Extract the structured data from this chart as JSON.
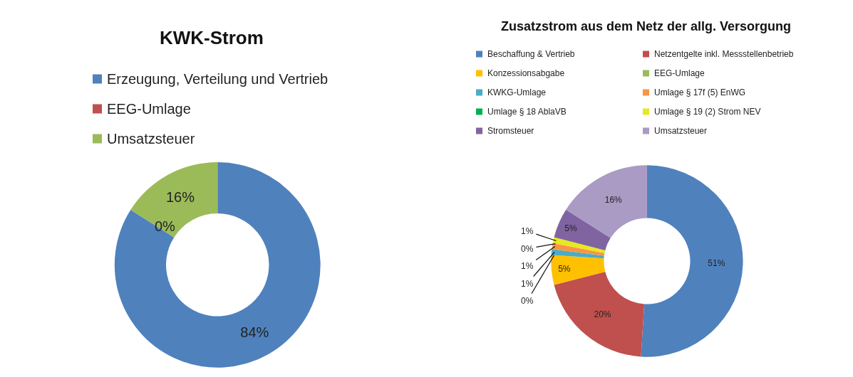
{
  "chart_data": [
    {
      "type": "donut",
      "title": "KWK-Strom",
      "legend": "top left",
      "categories": [
        "Erzeugung, Verteilung und Vertrieb",
        "EEG-Umlage",
        "Umsatzsteuer"
      ],
      "values": [
        84,
        0,
        16
      ],
      "colors": [
        "#4f81bd",
        "#c0504d",
        "#9bbb59"
      ],
      "value_labels": [
        "84%",
        "0%",
        "16%"
      ]
    },
    {
      "type": "donut",
      "title": "Zusatzstrom aus dem Netz der allg. Versorgung",
      "legend": "top",
      "categories": [
        "Beschaffung & Vertrieb",
        "Netzentgelte inkl. Messstellenbetrieb",
        "Konzessionsabgabe",
        "EEG-Umlage",
        "KWKG-Umlage",
        "Umlage § 17f (5) EnWG",
        "Umlage § 18 AblaVB",
        "Umlage § 19 (2) Strom NEV",
        "Stromsteuer",
        "Umsatzsteuer"
      ],
      "values": [
        51,
        20,
        5,
        0,
        1,
        1,
        0,
        1,
        5,
        16
      ],
      "colors": [
        "#4f81bd",
        "#c0504d",
        "#ffc000",
        "#9bbb59",
        "#4bacc6",
        "#f79646",
        "#00b050",
        "#e8e820",
        "#8064a2",
        "#a99bc4"
      ],
      "value_labels": [
        "51%",
        "20%",
        "5%",
        "0%",
        "1%",
        "1%",
        "0%",
        "1%",
        "5%",
        "16%"
      ]
    }
  ]
}
